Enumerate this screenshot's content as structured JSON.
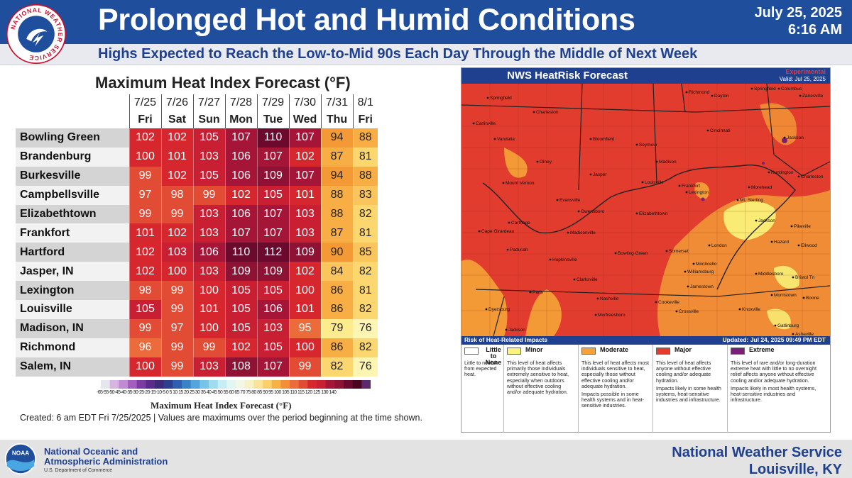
{
  "header": {
    "title": "Prolonged Hot and Humid Conditions",
    "date": "July 25, 2025",
    "time": "6:16 AM",
    "subtitle": "Highs Expected to Reach the Low-to-Mid 90s Each Day Through the Middle of Next Week",
    "seal_text": "NATIONAL WEATHER SERVICE"
  },
  "heat_index": {
    "title": "Maximum Heat Index Forecast (°F)",
    "dates": [
      "7/25",
      "7/26",
      "7/27",
      "7/28",
      "7/29",
      "7/30",
      "7/31",
      "8/1"
    ],
    "days": [
      "Fri",
      "Sat",
      "Sun",
      "Mon",
      "Tue",
      "Wed",
      "Thu",
      "Fri"
    ],
    "rows": [
      {
        "city": "Bowling Green",
        "values": [
          102,
          102,
          105,
          107,
          110,
          107,
          94,
          88
        ]
      },
      {
        "city": "Brandenburg",
        "values": [
          100,
          101,
          103,
          106,
          107,
          102,
          87,
          81
        ]
      },
      {
        "city": "Burkesville",
        "values": [
          99,
          102,
          105,
          106,
          109,
          107,
          94,
          88
        ]
      },
      {
        "city": "Campbellsville",
        "values": [
          97,
          98,
          99,
          102,
          105,
          101,
          88,
          83
        ]
      },
      {
        "city": "Elizabethtown",
        "values": [
          99,
          99,
          103,
          106,
          107,
          103,
          88,
          82
        ]
      },
      {
        "city": "Frankfort",
        "values": [
          101,
          102,
          103,
          107,
          107,
          103,
          87,
          81
        ]
      },
      {
        "city": "Hartford",
        "values": [
          102,
          103,
          106,
          110,
          112,
          109,
          90,
          85
        ]
      },
      {
        "city": "Jasper, IN",
        "values": [
          102,
          100,
          103,
          109,
          109,
          102,
          84,
          82
        ]
      },
      {
        "city": "Lexington",
        "values": [
          98,
          99,
          100,
          105,
          105,
          100,
          86,
          81
        ]
      },
      {
        "city": "Louisville",
        "values": [
          105,
          99,
          101,
          105,
          106,
          101,
          86,
          82
        ]
      },
      {
        "city": "Madison, IN",
        "values": [
          99,
          97,
          100,
          105,
          103,
          95,
          79,
          76
        ]
      },
      {
        "city": "Richmond",
        "values": [
          96,
          99,
          99,
          102,
          105,
          100,
          86,
          82
        ]
      },
      {
        "city": "Salem, IN",
        "values": [
          100,
          99,
          103,
          108,
          107,
          99,
          82,
          76
        ]
      }
    ],
    "colorbar_ticks": "-65-55-50-45-40-35-30-25-20-15-10-5 0 5 10 15 20 25 30 35 40 45 50 55 60 65 70 75 80 85 90 95 100 105 110 115 120 125 130 140",
    "colorbar_title": "Maximum Heat Index Forecast (°F)",
    "created": "Created: 6 am EDT Fri 7/25/2025  |  Values are maximums over the period beginning at the time shown."
  },
  "map": {
    "title": "NWS HeatRisk Forecast",
    "experimental": "Experimental",
    "valid": "Valid: Jul 25, 2025",
    "risk_label": "Risk of Heat-Related Impacts",
    "updated": "Updated: Jul 24, 2025 09:49 PM EDT",
    "cities": [
      "Springfield",
      "Richmond",
      "Dayton",
      "Springfield",
      "Columbus",
      "Zanesville",
      "Carlinville",
      "Charleston",
      "Cincinnati",
      "Bloomfield",
      "Seymour",
      "Jackson",
      "Vandalia",
      "Olney",
      "Madison",
      "Huntington",
      "Charleston",
      "Mount Vernon",
      "Jasper",
      "Louisville",
      "Frankfort",
      "Lexington",
      "Morehead",
      "Mt. Sterling",
      "Evansville",
      "Owensboro",
      "Elizabethtown",
      "Cape Girardeau",
      "Madisonville",
      "Jackson",
      "Pikeville",
      "Paducah",
      "Hopkinsville",
      "Bowling Green",
      "Somerset",
      "London",
      "Hazard",
      "Monticello",
      "Williamsburg",
      "Clarksville",
      "Middlesboro",
      "Jamestown",
      "Bristol Tn",
      "Paris",
      "Nashville",
      "Cookeville",
      "Morristown",
      "Boone",
      "Murfreesboro",
      "Crossville",
      "Knoxville",
      "Dyersburg",
      "Gatlinburg",
      "Jackson",
      "Asheville",
      "Ellwood",
      "Carthage"
    ],
    "legend": [
      {
        "name": "Little to None",
        "color": "#ffffff",
        "text": [
          "Little to no risk from expected heat."
        ]
      },
      {
        "name": "Minor",
        "color": "#f9f57a",
        "text": [
          "This level of heat affects primarily those individuals extremely sensitive to heat, especially when outdoors without effective cooling and/or adequate hydration."
        ]
      },
      {
        "name": "Moderate",
        "color": "#f7a234",
        "text": [
          "This level of heat affects most individuals sensitive to heat, especially those without effective cooling and/or adequate hydration.",
          "Impacts possible in some health systems and in heat-sensitive industries."
        ]
      },
      {
        "name": "Major",
        "color": "#e53a2c",
        "text": [
          "This level of heat affects anyone without effective cooling and/or adequate hydration.",
          "Impacts likely in some health systems, heat-sensitive industries and infrastructure."
        ]
      },
      {
        "name": "Extreme",
        "color": "#7b1e7a",
        "text": [
          "This level of rare and/or long-duration extreme heat with little to no overnight relief affects anyone without effective cooling and/or adequate hydration.",
          "Impacts likely in most health systems, heat-sensitive industries and infrastructure."
        ]
      }
    ]
  },
  "footer": {
    "noaa_line1": "National Oceanic and",
    "noaa_line2": "Atmospheric Administration",
    "noaa_dept": "U.S. Department of Commerce",
    "noaa_logo_text": "NOAA",
    "office_line1": "National Weather Service",
    "office_line2": "Louisville, KY"
  }
}
